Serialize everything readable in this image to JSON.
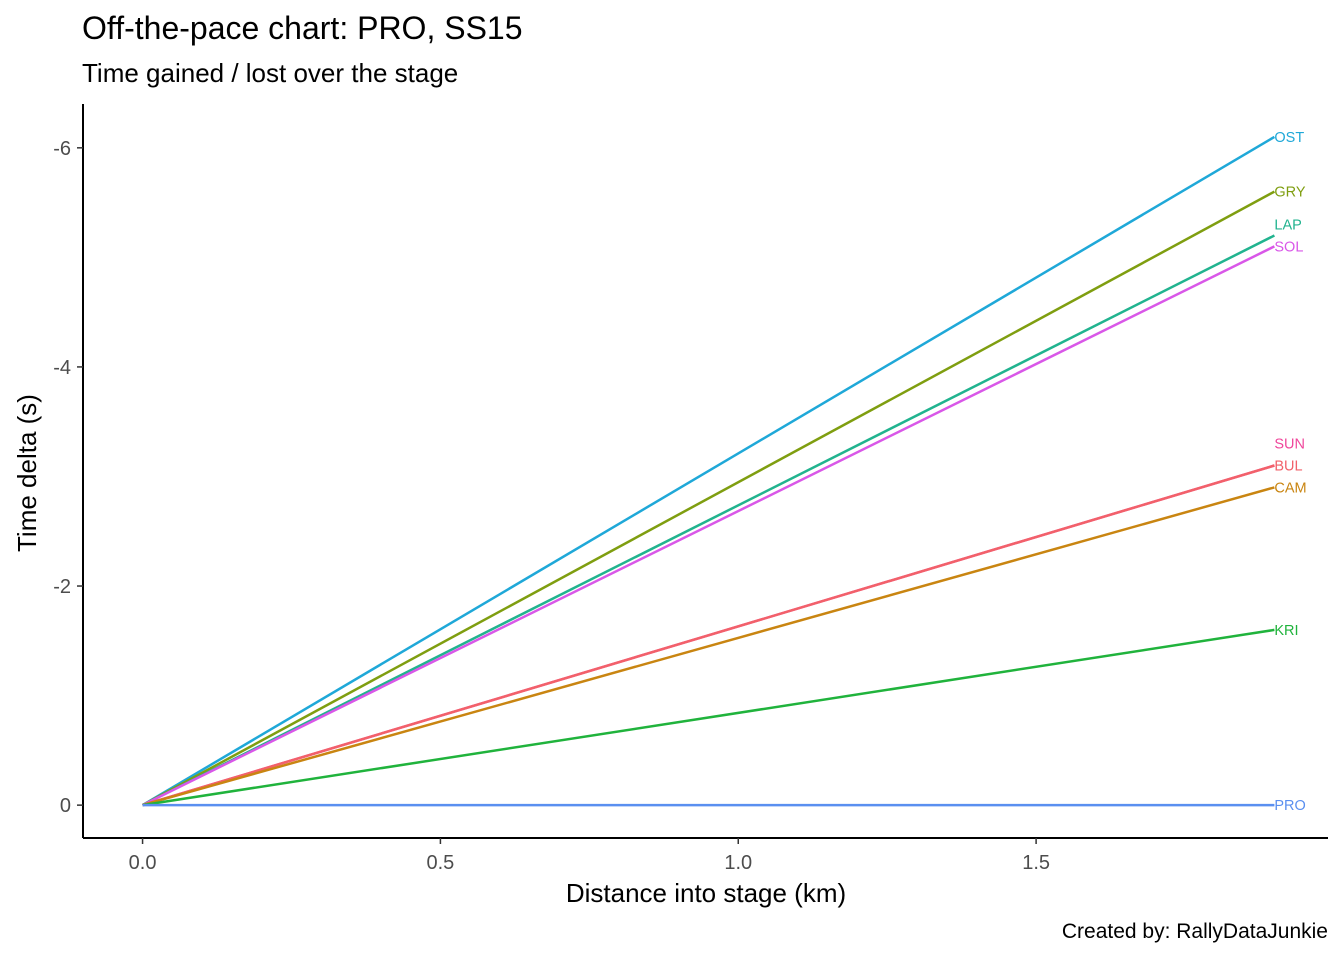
{
  "title": "Off-the-pace chart: PRO, SS15",
  "subtitle": "Time gained / lost over the stage",
  "caption": "Created by: RallyDataJunkie",
  "chart_data": {
    "type": "line",
    "title": "Off-the-pace chart: PRO, SS15",
    "subtitle": "Time gained / lost over the stage",
    "xlabel": "Distance into stage (km)",
    "ylabel": "Time delta (s)",
    "xlim": [
      -0.1,
      1.99
    ],
    "ylim": [
      0.3,
      -6.4
    ],
    "y_reversed": true,
    "x_ticks": [
      0.0,
      0.5,
      1.0,
      1.5
    ],
    "x_tick_labels": [
      "0.0",
      "0.5",
      "1.0",
      "1.5"
    ],
    "y_ticks": [
      0,
      -2,
      -4,
      -6
    ],
    "y_tick_labels": [
      "0",
      "-2",
      "-4",
      "-6"
    ],
    "grid": false,
    "legend": "none",
    "series": [
      {
        "name": "OST",
        "color": "#1fa8d8",
        "x": [
          0,
          1.9
        ],
        "y": [
          0,
          -6.1
        ],
        "label_y": -6.1
      },
      {
        "name": "GRY",
        "color": "#7f9e10",
        "x": [
          0,
          1.9
        ],
        "y": [
          0,
          -5.6
        ],
        "label_y": -5.6
      },
      {
        "name": "LAP",
        "color": "#21b38f",
        "x": [
          0,
          1.9
        ],
        "y": [
          0,
          -5.2
        ],
        "label_y": -5.3
      },
      {
        "name": "SOL",
        "color": "#d957e8",
        "x": [
          0,
          1.9
        ],
        "y": [
          0,
          -5.1
        ],
        "label_y": -5.1
      },
      {
        "name": "SUN",
        "color": "#f0479c",
        "x": [
          0,
          1.9
        ],
        "y": [
          0,
          -3.1
        ],
        "label_y": -3.3
      },
      {
        "name": "BUL",
        "color": "#f2616a",
        "x": [
          0,
          1.9
        ],
        "y": [
          0,
          -3.1
        ],
        "label_y": -3.1
      },
      {
        "name": "CAM",
        "color": "#c98511",
        "x": [
          0,
          1.9
        ],
        "y": [
          0,
          -2.9
        ],
        "label_y": -2.9
      },
      {
        "name": "KRI",
        "color": "#20b33c",
        "x": [
          0,
          1.9
        ],
        "y": [
          0,
          -1.6
        ],
        "label_y": -1.6
      },
      {
        "name": "PRO",
        "color": "#5a8ff0",
        "x": [
          0,
          1.9
        ],
        "y": [
          0,
          0
        ],
        "label_y": 0
      }
    ]
  }
}
